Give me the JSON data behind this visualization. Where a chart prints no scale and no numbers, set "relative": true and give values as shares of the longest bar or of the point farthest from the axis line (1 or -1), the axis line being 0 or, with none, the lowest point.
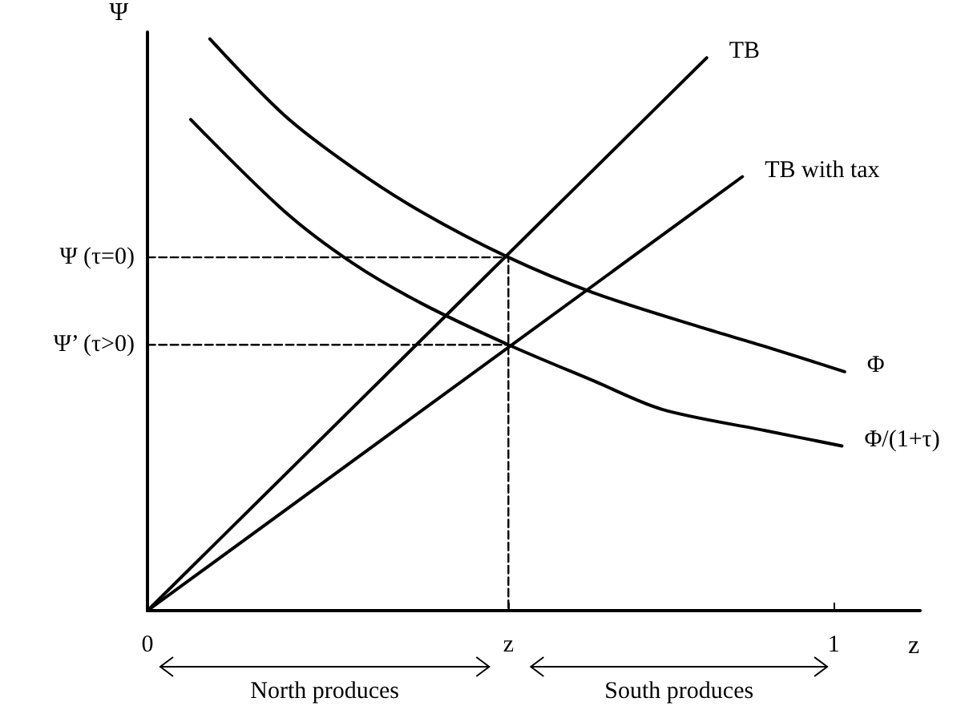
{
  "chart_data": {
    "type": "line",
    "relative": true,
    "xlabel": "z",
    "ylabel": "Ψ",
    "xlim": [
      0,
      1.126
    ],
    "xticks": [
      0,
      {
        "value": 0.526,
        "label": "z"
      },
      1
    ],
    "grid": false,
    "legend": false,
    "marker": "none",
    "line_style": "solid",
    "series": [
      {
        "name": "TB",
        "color": "#000000",
        "x": [
          0,
          0.815
        ],
        "values": [
          0,
          0.967
        ]
      },
      {
        "name": "TB with tax",
        "color": "#000000",
        "x": [
          0,
          0.867
        ],
        "values": [
          0,
          0.759
        ]
      },
      {
        "name": "Φ",
        "color": "#000000",
        "x": [
          0.091,
          0.2,
          0.3,
          0.4,
          0.526,
          0.65,
          0.8,
          0.9,
          1.016
        ],
        "values": [
          1.0,
          0.866,
          0.774,
          0.697,
          0.618,
          0.556,
          0.498,
          0.462,
          0.418
        ]
      },
      {
        "name": "Φ/(1+τ)",
        "color": "#000000",
        "x": [
          0.063,
          0.2,
          0.3,
          0.4,
          0.526,
          0.65,
          0.75,
          0.9,
          1.012
        ],
        "values": [
          0.859,
          0.698,
          0.607,
          0.537,
          0.465,
          0.402,
          0.352,
          0.315,
          0.288
        ]
      },
      {
        "color": "#000000",
        "line_style": "dashed",
        "x": [
          0,
          0.526,
          0.526
        ],
        "values": [
          0.618,
          0.618,
          0
        ]
      },
      {
        "color": "#000000",
        "line_style": "dashed",
        "x": [
          0,
          0.526
        ],
        "values": [
          0.465,
          0.465
        ]
      }
    ],
    "annotations": [
      {
        "text": "Ψ (τ=0)",
        "x": 0,
        "y": 0.618
      },
      {
        "text": "Ψ’ (τ>0)",
        "x": 0,
        "y": 0.465
      },
      "North produces",
      "South produces"
    ]
  }
}
